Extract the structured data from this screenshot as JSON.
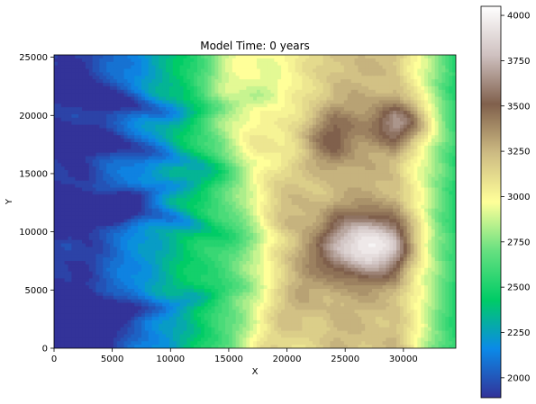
{
  "chart_data": {
    "type": "heatmap",
    "title": "Model Time: 0 years",
    "xlabel": "X",
    "ylabel": "Y",
    "xlim": [
      0,
      34500
    ],
    "ylim": [
      0,
      25200
    ],
    "x_ticks": [
      0,
      5000,
      10000,
      15000,
      20000,
      25000,
      30000
    ],
    "x_tick_labels": [
      "0",
      "5000",
      "10000",
      "15000",
      "20000",
      "25000",
      "30000"
    ],
    "y_ticks": [
      0,
      5000,
      10000,
      15000,
      20000,
      25000
    ],
    "y_tick_labels": [
      "0",
      "5000",
      "10000",
      "15000",
      "20000",
      "25000"
    ],
    "colorbar": {
      "range": [
        1890,
        4050
      ],
      "ticks": [
        2000,
        2250,
        2500,
        2750,
        3000,
        3250,
        3500,
        3750,
        4000
      ],
      "tick_labels": [
        "2000",
        "2250",
        "2500",
        "2750",
        "3000",
        "3250",
        "3500",
        "3750",
        "4000"
      ],
      "colormap": "terrain",
      "stops": [
        "#333399",
        "#0b8ae8",
        "#00cc66",
        "#66e080",
        "#ffff99",
        "#cdbb83",
        "#80604c",
        "#cfc1c0",
        "#ffffff"
      ]
    },
    "grid": false,
    "description_features": {
      "low_regions": "west side and bottom-left",
      "high_regions": "east-central ridge, peak near X 27000 Y 9000 and X 30000 Y 19500"
    }
  }
}
